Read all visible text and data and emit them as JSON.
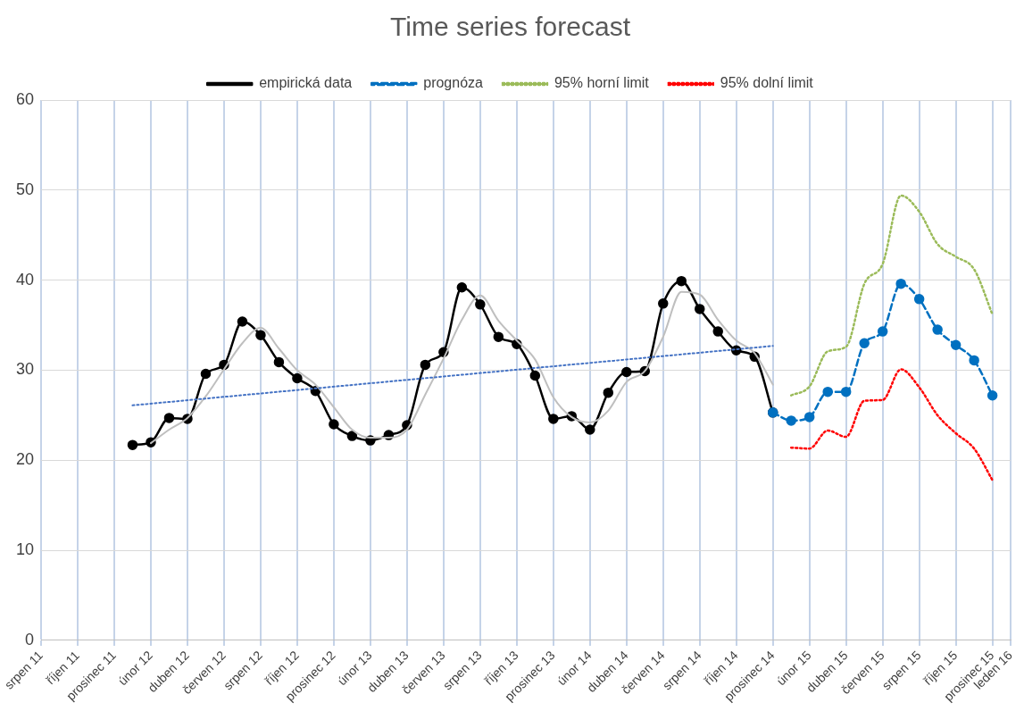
{
  "chart_data": {
    "type": "line",
    "title": "Time series forecast",
    "xlim": [
      "2011-08",
      "2016-01"
    ],
    "xticks": [
      {
        "value": "2011-08",
        "label": "srpen 11"
      },
      {
        "value": "2011-10",
        "label": "říjen 11"
      },
      {
        "value": "2011-12",
        "label": "prosinec 11"
      },
      {
        "value": "2012-02",
        "label": "únor 12"
      },
      {
        "value": "2012-04",
        "label": "duben 12"
      },
      {
        "value": "2012-06",
        "label": "červen 12"
      },
      {
        "value": "2012-08",
        "label": "srpen 12"
      },
      {
        "value": "2012-10",
        "label": "říjen 12"
      },
      {
        "value": "2012-12",
        "label": "prosinec 12"
      },
      {
        "value": "2013-02",
        "label": "únor 13"
      },
      {
        "value": "2013-04",
        "label": "duben 13"
      },
      {
        "value": "2013-06",
        "label": "červen 13"
      },
      {
        "value": "2013-08",
        "label": "srpen 13"
      },
      {
        "value": "2013-10",
        "label": "říjen 13"
      },
      {
        "value": "2013-12",
        "label": "prosinec 13"
      },
      {
        "value": "2014-02",
        "label": "únor 14"
      },
      {
        "value": "2014-04",
        "label": "duben 14"
      },
      {
        "value": "2014-06",
        "label": "červen 14"
      },
      {
        "value": "2014-08",
        "label": "srpen 14"
      },
      {
        "value": "2014-10",
        "label": "říjen 14"
      },
      {
        "value": "2014-12",
        "label": "prosinec 14"
      },
      {
        "value": "2015-02",
        "label": "únor 15"
      },
      {
        "value": "2015-04",
        "label": "duben 15"
      },
      {
        "value": "2015-06",
        "label": "červen 15"
      },
      {
        "value": "2015-08",
        "label": "srpen 15"
      },
      {
        "value": "2015-10",
        "label": "říjen 15"
      },
      {
        "value": "2015-12",
        "label": "prosinec 15"
      },
      {
        "value": "2016-01",
        "label": "leden 16"
      }
    ],
    "ylim": [
      0,
      60
    ],
    "yticks": [
      0,
      10,
      20,
      30,
      40,
      50,
      60
    ],
    "grid": true,
    "legend": "top",
    "series": [
      {
        "name": "empirická data",
        "color": "#000000",
        "marker": "circle",
        "line_style": "solid",
        "x": [
          "2012-01",
          "2012-02",
          "2012-03",
          "2012-04",
          "2012-05",
          "2012-06",
          "2012-07",
          "2012-08",
          "2012-09",
          "2012-10",
          "2012-11",
          "2012-12",
          "2013-01",
          "2013-02",
          "2013-03",
          "2013-04",
          "2013-05",
          "2013-06",
          "2013-07",
          "2013-08",
          "2013-09",
          "2013-10",
          "2013-11",
          "2013-12",
          "2014-01",
          "2014-02",
          "2014-03",
          "2014-04",
          "2014-05",
          "2014-06",
          "2014-07",
          "2014-08",
          "2014-09",
          "2014-10",
          "2014-11",
          "2014-12"
        ],
        "values": [
          21.7,
          22.0,
          24.7,
          24.6,
          29.6,
          30.6,
          35.4,
          33.9,
          30.9,
          29.1,
          27.7,
          24.0,
          22.7,
          22.2,
          22.8,
          23.9,
          30.6,
          32.0,
          39.2,
          37.3,
          33.7,
          32.9,
          29.4,
          24.6,
          24.9,
          23.4,
          27.5,
          29.8,
          29.9,
          37.4,
          39.9,
          36.8,
          34.3,
          32.2,
          31.5,
          25.3
        ]
      },
      {
        "name": "prognóza",
        "color": "#0070c0",
        "marker": "circle",
        "line_style": "dashed",
        "x": [
          "2014-12",
          "2015-01",
          "2015-02",
          "2015-03",
          "2015-04",
          "2015-05",
          "2015-06",
          "2015-07",
          "2015-08",
          "2015-09",
          "2015-10",
          "2015-11",
          "2015-12"
        ],
        "values": [
          25.3,
          24.4,
          24.8,
          27.6,
          27.6,
          33.0,
          34.3,
          39.6,
          37.9,
          34.5,
          32.8,
          31.1,
          27.2
        ]
      },
      {
        "name": "95% horní limit",
        "color": "#9bbb59",
        "marker": "none",
        "line_style": "dotted",
        "x": [
          "2015-01",
          "2015-02",
          "2015-03",
          "2015-04",
          "2015-05",
          "2015-06",
          "2015-07",
          "2015-08",
          "2015-09",
          "2015-10",
          "2015-11",
          "2015-12"
        ],
        "values": [
          27.2,
          28.2,
          32.1,
          32.6,
          39.6,
          41.8,
          49.4,
          47.6,
          44.0,
          42.6,
          41.2,
          36.2
        ]
      },
      {
        "name": "95% dolní limit",
        "color": "#ff0000",
        "marker": "none",
        "line_style": "dotted",
        "x": [
          "2015-01",
          "2015-02",
          "2015-03",
          "2015-04",
          "2015-05",
          "2015-06",
          "2015-07",
          "2015-08",
          "2015-09",
          "2015-10",
          "2015-11",
          "2015-12"
        ],
        "values": [
          21.4,
          21.3,
          23.3,
          22.6,
          26.6,
          26.7,
          30.1,
          28.1,
          25.0,
          23.0,
          21.3,
          17.8
        ]
      },
      {
        "color": "#bfbfbf",
        "marker": "none",
        "line_style": "solid",
        "x": [
          "2012-02",
          "2012-03",
          "2012-04",
          "2012-05",
          "2012-06",
          "2012-07",
          "2012-08",
          "2012-09",
          "2012-10",
          "2012-11",
          "2012-12",
          "2013-01",
          "2013-02",
          "2013-03",
          "2013-04",
          "2013-05",
          "2013-06",
          "2013-07",
          "2013-08",
          "2013-09",
          "2013-10",
          "2013-11",
          "2013-12",
          "2014-01",
          "2014-02",
          "2014-03",
          "2014-04",
          "2014-05",
          "2014-06",
          "2014-07",
          "2014-08",
          "2014-09",
          "2014-10",
          "2014-11",
          "2014-12"
        ],
        "values": [
          21.9,
          23.4,
          24.7,
          27.1,
          30.1,
          33.0,
          34.7,
          32.4,
          30.0,
          28.4,
          25.9,
          23.4,
          22.5,
          22.5,
          23.4,
          27.3,
          31.3,
          35.6,
          38.3,
          35.5,
          33.3,
          31.2,
          27.0,
          24.8,
          24.2,
          25.5,
          28.7,
          29.9,
          33.7,
          38.7,
          38.4,
          35.6,
          33.3,
          31.9,
          28.4
        ]
      },
      {
        "color": "#4472c4",
        "marker": "none",
        "line_style": "dotted",
        "x": [
          "2012-01",
          "2014-12"
        ],
        "values": [
          26.1,
          32.7
        ]
      }
    ]
  }
}
